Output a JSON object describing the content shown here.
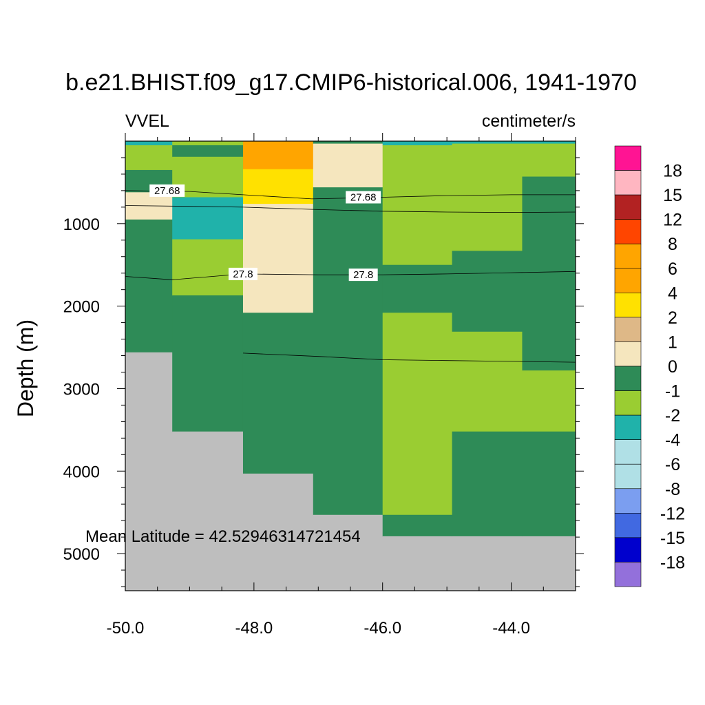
{
  "chart_data": {
    "type": "heatmap",
    "title": "b.e21.BHIST.f09_g17.CMIP6-historical.006, 1941-1970",
    "left_label": "VVEL",
    "right_label": "centimeter/s",
    "xlabel": "",
    "ylabel": "Depth (m)",
    "xlim": [
      -50.0,
      -43.0
    ],
    "ylim": [
      0,
      5450
    ],
    "y_inverted": true,
    "x_ticks": [
      -50.0,
      -48.0,
      -46.0,
      -44.0
    ],
    "x_tick_labels": [
      "-50.0",
      "-48.0",
      "-46.0",
      "-44.0"
    ],
    "y_ticks": [
      1000,
      2000,
      3000,
      4000,
      5000
    ],
    "y_tick_labels": [
      "1000",
      "2000",
      "3000",
      "4000",
      "5000"
    ],
    "annotation": "Mean Latitude = 42.52946314721454",
    "missing_color": "#BEBEBE",
    "colorbar": {
      "labels": [
        "18",
        "15",
        "12",
        "8",
        "6",
        "4",
        "2",
        "1",
        "0",
        "-1",
        "-2",
        "-4",
        "-6",
        "-8",
        "-12",
        "-15",
        "-18"
      ],
      "colors": [
        "#FF1493",
        "#FFB6C1",
        "#B22222",
        "#FF4500",
        "#FFA500",
        "#FFA500",
        "#FFE100",
        "#DEB887",
        "#F5E6BE",
        "#2E8B57",
        "#9ACD32",
        "#20B2AA",
        "#B0E0E6",
        "#B0E0E6",
        "#7B9EF0",
        "#4169E1",
        "#0000CD",
        "#9370DB"
      ]
    },
    "columns": [
      {
        "x0": -50.0,
        "x1": -49.27,
        "cells": [
          {
            "d0": 0,
            "d1": 50,
            "cat": "-2"
          },
          {
            "d0": 50,
            "d1": 350,
            "cat": "-1"
          },
          {
            "d0": 350,
            "d1": 620,
            "cat": "0"
          },
          {
            "d0": 620,
            "d1": 950,
            "cat": "1"
          },
          {
            "d0": 950,
            "d1": 2560,
            "cat": "0"
          },
          {
            "d0": 2560,
            "d1": 5450,
            "cat": "missing"
          }
        ]
      },
      {
        "x0": -49.27,
        "x1": -48.17,
        "cells": [
          {
            "d0": 0,
            "d1": 50,
            "cat": "-1"
          },
          {
            "d0": 50,
            "d1": 190,
            "cat": "0"
          },
          {
            "d0": 190,
            "d1": 680,
            "cat": "-1"
          },
          {
            "d0": 680,
            "d1": 1190,
            "cat": "-2"
          },
          {
            "d0": 1190,
            "d1": 1870,
            "cat": "-1"
          },
          {
            "d0": 1870,
            "d1": 3520,
            "cat": "0"
          },
          {
            "d0": 3520,
            "d1": 5450,
            "cat": "missing"
          }
        ]
      },
      {
        "x0": -48.17,
        "x1": -47.08,
        "cells": [
          {
            "d0": 0,
            "d1": 340,
            "cat": "6"
          },
          {
            "d0": 340,
            "d1": 760,
            "cat": "4"
          },
          {
            "d0": 760,
            "d1": 2080,
            "cat": "1"
          },
          {
            "d0": 2080,
            "d1": 4030,
            "cat": "0"
          },
          {
            "d0": 4030,
            "d1": 5450,
            "cat": "missing"
          }
        ]
      },
      {
        "x0": -47.08,
        "x1": -46.0,
        "cells": [
          {
            "d0": 0,
            "d1": 30,
            "cat": "0"
          },
          {
            "d0": 30,
            "d1": 560,
            "cat": "1"
          },
          {
            "d0": 560,
            "d1": 4530,
            "cat": "0"
          },
          {
            "d0": 4530,
            "d1": 5450,
            "cat": "missing"
          }
        ]
      },
      {
        "x0": -46.0,
        "x1": -44.92,
        "cells": [
          {
            "d0": 0,
            "d1": 50,
            "cat": "-2"
          },
          {
            "d0": 50,
            "d1": 1500,
            "cat": "-1"
          },
          {
            "d0": 1500,
            "d1": 2080,
            "cat": "0"
          },
          {
            "d0": 2080,
            "d1": 4530,
            "cat": "-1"
          },
          {
            "d0": 4530,
            "d1": 4790,
            "cat": "0"
          },
          {
            "d0": 4790,
            "d1": 5450,
            "cat": "missing"
          }
        ]
      },
      {
        "x0": -44.92,
        "x1": -43.83,
        "cells": [
          {
            "d0": 0,
            "d1": 30,
            "cat": "-2"
          },
          {
            "d0": 30,
            "d1": 1330,
            "cat": "-1"
          },
          {
            "d0": 1330,
            "d1": 2310,
            "cat": "0"
          },
          {
            "d0": 2310,
            "d1": 3520,
            "cat": "-1"
          },
          {
            "d0": 3520,
            "d1": 4790,
            "cat": "0"
          },
          {
            "d0": 4790,
            "d1": 5450,
            "cat": "missing"
          }
        ]
      },
      {
        "x0": -43.83,
        "x1": -43.0,
        "cells": [
          {
            "d0": 0,
            "d1": 30,
            "cat": "-2"
          },
          {
            "d0": 30,
            "d1": 430,
            "cat": "-1"
          },
          {
            "d0": 430,
            "d1": 2780,
            "cat": "0"
          },
          {
            "d0": 2780,
            "d1": 3520,
            "cat": "-1"
          },
          {
            "d0": 3520,
            "d1": 4790,
            "cat": "0"
          },
          {
            "d0": 4790,
            "d1": 5450,
            "cat": "missing"
          }
        ]
      }
    ],
    "contours": [
      {
        "level": "27.68",
        "points": [
          [
            -50.0,
            600
          ],
          [
            -49.0,
            610
          ],
          [
            -48.17,
            650
          ],
          [
            -47.1,
            700
          ],
          [
            -46.0,
            680
          ],
          [
            -45.0,
            660
          ],
          [
            -44.0,
            650
          ],
          [
            -43.0,
            650
          ]
        ],
        "labels": [
          [
            -49.35,
            600
          ],
          [
            -46.3,
            680
          ]
        ]
      },
      {
        "level": "",
        "points": [
          [
            -50.0,
            780
          ],
          [
            -49.0,
            790
          ],
          [
            -48.17,
            800
          ],
          [
            -47.0,
            830
          ],
          [
            -46.0,
            850
          ],
          [
            -45.0,
            860
          ],
          [
            -44.0,
            865
          ],
          [
            -43.0,
            860
          ]
        ],
        "labels": []
      },
      {
        "level": "27.8",
        "points": [
          [
            -50.0,
            1640
          ],
          [
            -49.27,
            1680
          ],
          [
            -48.17,
            1610
          ],
          [
            -47.0,
            1620
          ],
          [
            -46.0,
            1620
          ],
          [
            -45.0,
            1610
          ],
          [
            -44.0,
            1595
          ],
          [
            -43.0,
            1580
          ]
        ],
        "labels": [
          [
            -48.17,
            1610
          ],
          [
            -46.3,
            1620
          ]
        ]
      },
      {
        "level": "",
        "points": [
          [
            -48.17,
            2570
          ],
          [
            -47.0,
            2610
          ],
          [
            -46.0,
            2650
          ],
          [
            -45.0,
            2660
          ],
          [
            -44.0,
            2670
          ],
          [
            -43.0,
            2680
          ]
        ],
        "labels": []
      }
    ]
  }
}
